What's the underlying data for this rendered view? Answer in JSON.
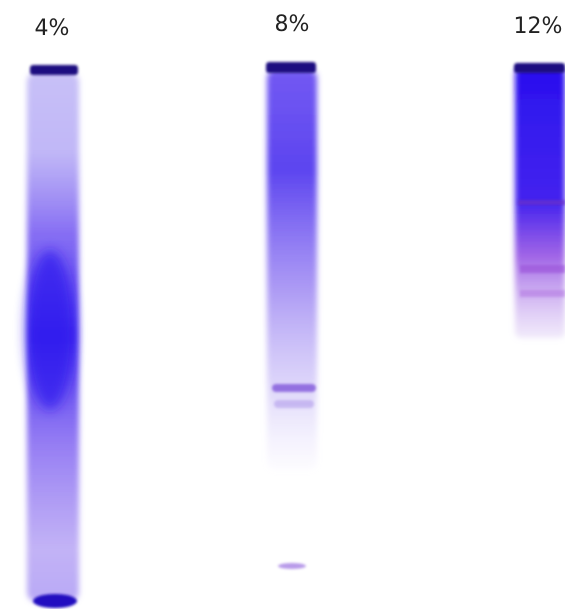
{
  "lanes": [
    {
      "label": "4%"
    },
    {
      "label": "8%"
    },
    {
      "label": "12%"
    }
  ]
}
